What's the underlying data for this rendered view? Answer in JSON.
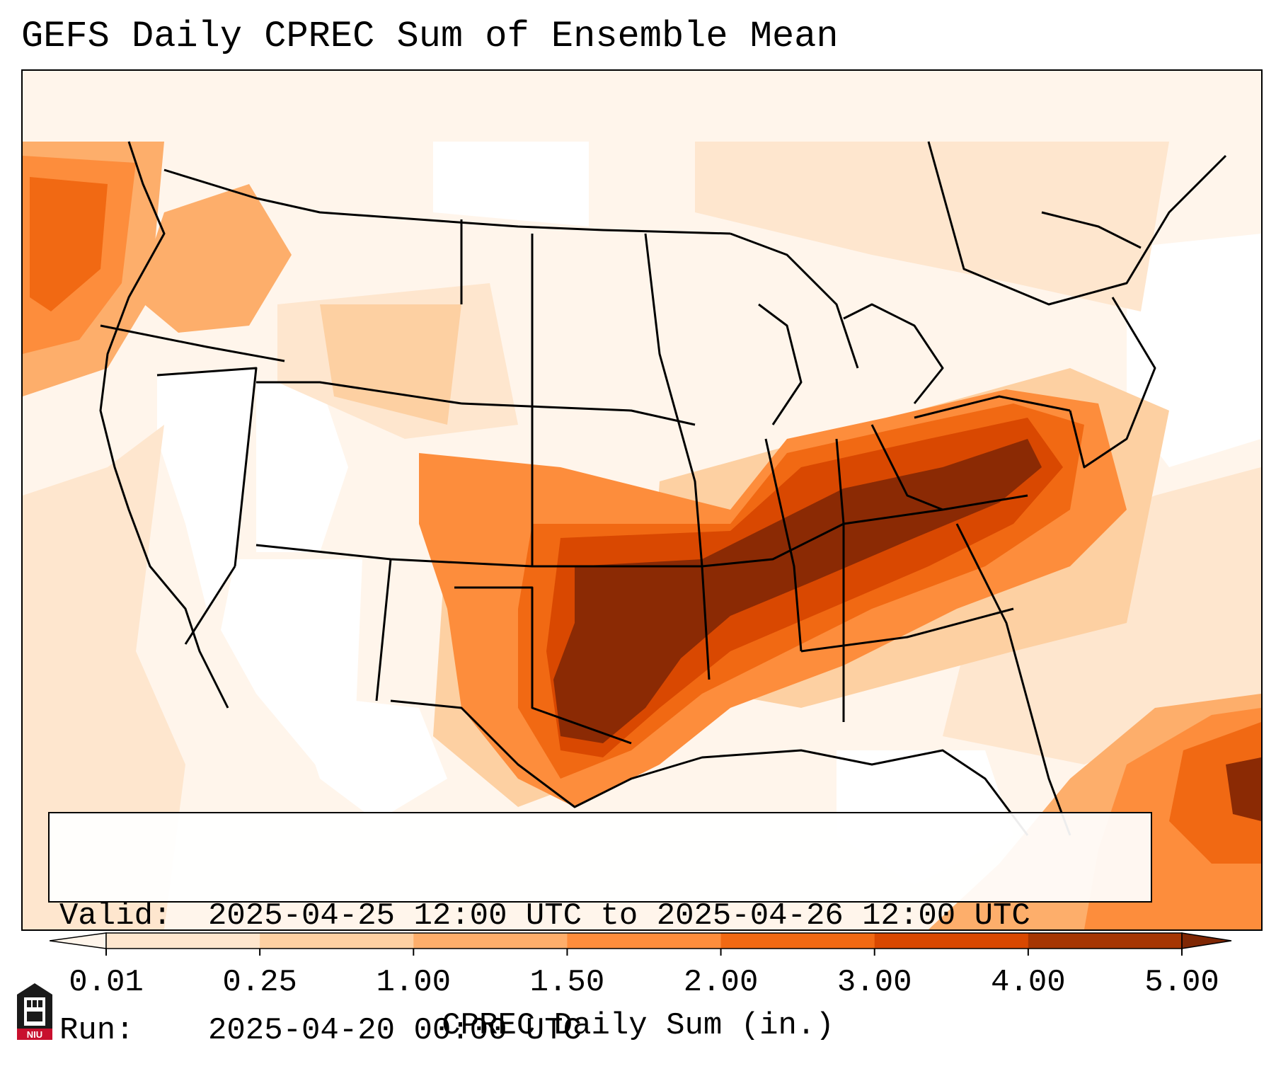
{
  "title": "GEFS Daily CPREC Sum of Ensemble Mean",
  "info": {
    "valid_label": "Valid:",
    "valid_value": "2025-04-25 12:00 UTC to 2025-04-26 12:00 UTC",
    "run_label": "Run:",
    "run_value": "2025-04-20 00:00 UTC"
  },
  "colorbar": {
    "label": "CPREC Daily Sum (in.)",
    "ticks": [
      "0.01",
      "0.25",
      "1.00",
      "1.50",
      "2.00",
      "3.00",
      "4.00",
      "5.00"
    ],
    "colors": [
      "#fff5eb",
      "#fee6ce",
      "#fdd0a2",
      "#fdae6b",
      "#fd8d3c",
      "#f16913",
      "#d94801",
      "#a63603",
      "#7f2704"
    ],
    "extend": "both"
  },
  "map": {
    "region": "Contiguous United States",
    "precip_colors": {
      "trace": "#fff5eb",
      "light": "#fee6ce",
      "low": "#fdd0a2",
      "mid": "#fdae6b",
      "moderate": "#fd8d3c",
      "heavy": "#f16913",
      "very_heavy": "#d94801",
      "extreme": "#8b2a04"
    }
  },
  "logo": {
    "text": "NIU",
    "color": "#c8102e"
  }
}
